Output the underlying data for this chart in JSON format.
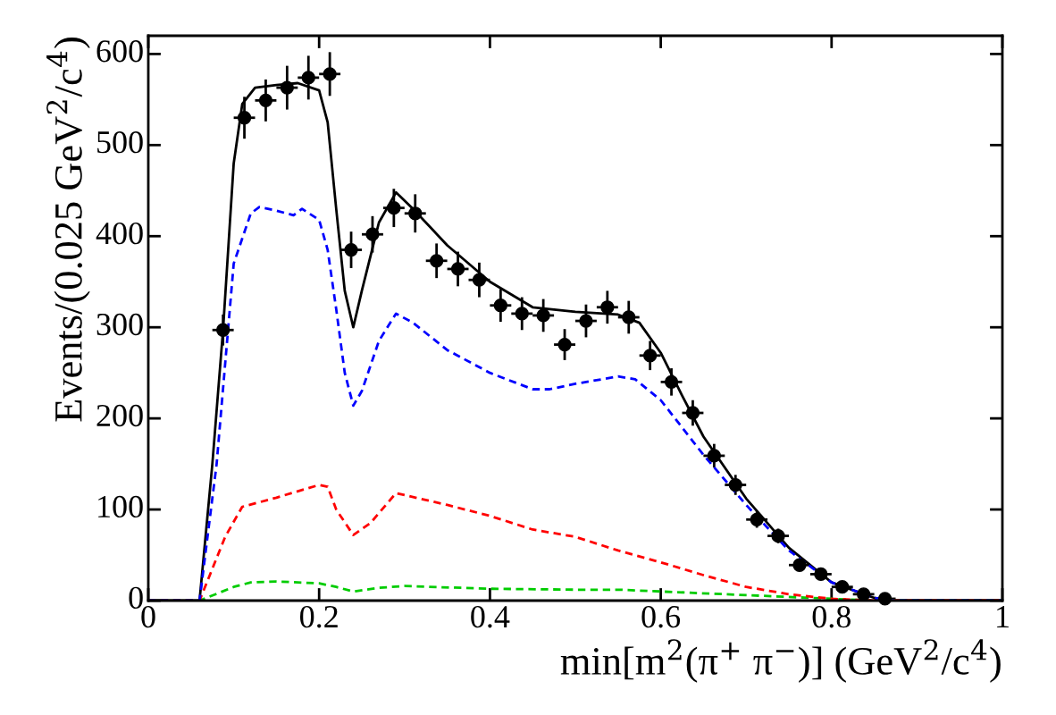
{
  "chart_data": {
    "type": "scatter",
    "xlabel": "min[m$^{2}$(π$^{+}$ π$^{−}$)] (GeV$^{2}$/c$^{4}$)",
    "ylabel": "Events/(0.025 GeV$^{2}$/c$^{4}$)",
    "xlim": [
      0,
      1
    ],
    "ylim": [
      0,
      620
    ],
    "xticks": [
      0,
      0.2,
      0.4,
      0.6,
      0.8,
      1
    ],
    "yticks": [
      0,
      100,
      200,
      300,
      400,
      500,
      600
    ],
    "grid": false,
    "legend": false,
    "series": [
      {
        "type": "line",
        "color": "#00cc00",
        "line_style": "dashed",
        "x": [
          0,
          0.06,
          0.1,
          0.12,
          0.15,
          0.2,
          0.22,
          0.24,
          0.27,
          0.3,
          0.4,
          0.5,
          0.55,
          0.6,
          0.7,
          0.8,
          0.85,
          1.0
        ],
        "values": [
          0,
          0,
          15,
          20,
          21,
          19,
          15,
          10,
          14,
          16,
          13,
          12,
          12,
          10,
          6,
          2,
          0,
          0
        ]
      },
      {
        "type": "line",
        "color": "#ff0000",
        "line_style": "dashed",
        "x": [
          0,
          0.06,
          0.09,
          0.11,
          0.15,
          0.2,
          0.21,
          0.22,
          0.24,
          0.26,
          0.29,
          0.35,
          0.4,
          0.45,
          0.5,
          0.55,
          0.6,
          0.65,
          0.7,
          0.75,
          0.8,
          0.85,
          1.0
        ],
        "values": [
          0,
          0,
          70,
          103,
          113,
          127,
          125,
          100,
          72,
          85,
          118,
          105,
          93,
          78,
          70,
          55,
          42,
          28,
          15,
          7,
          2,
          0,
          0
        ]
      },
      {
        "type": "line",
        "color": "#0000ff",
        "line_style": "dashed",
        "x": [
          0,
          0.06,
          0.08,
          0.1,
          0.12,
          0.13,
          0.15,
          0.17,
          0.18,
          0.2,
          0.21,
          0.22,
          0.23,
          0.24,
          0.25,
          0.27,
          0.29,
          0.31,
          0.35,
          0.4,
          0.45,
          0.47,
          0.5,
          0.55,
          0.57,
          0.6,
          0.65,
          0.7,
          0.75,
          0.8,
          0.85,
          0.87,
          1.0
        ],
        "values": [
          0,
          0,
          150,
          370,
          425,
          432,
          428,
          423,
          430,
          418,
          385,
          320,
          250,
          214,
          230,
          285,
          315,
          305,
          275,
          250,
          232,
          232,
          238,
          246,
          243,
          220,
          160,
          105,
          55,
          20,
          3,
          0,
          0
        ]
      },
      {
        "type": "line",
        "color": "#000000",
        "line_style": "solid",
        "x": [
          0,
          0.06,
          0.075,
          0.0875,
          0.1,
          0.11,
          0.125,
          0.15,
          0.175,
          0.2,
          0.21,
          0.22,
          0.23,
          0.24,
          0.25,
          0.27,
          0.29,
          0.31,
          0.35,
          0.4,
          0.45,
          0.5,
          0.55,
          0.575,
          0.6,
          0.625,
          0.65,
          0.7,
          0.75,
          0.8,
          0.85,
          0.87,
          1.0
        ],
        "values": [
          0,
          0,
          150,
          297,
          480,
          545,
          563,
          566,
          568,
          560,
          525,
          430,
          340,
          300,
          340,
          415,
          448,
          430,
          390,
          350,
          322,
          317,
          314,
          305,
          272,
          225,
          180,
          112,
          58,
          20,
          3,
          0,
          0
        ]
      },
      {
        "color": "#000000",
        "marker": "circle",
        "x": [
          0.0875,
          0.1125,
          0.1375,
          0.1625,
          0.1875,
          0.2125,
          0.2375,
          0.2625,
          0.2875,
          0.3125,
          0.3375,
          0.3625,
          0.3875,
          0.4125,
          0.4375,
          0.4625,
          0.4875,
          0.5125,
          0.5375,
          0.5625,
          0.5875,
          0.6125,
          0.6375,
          0.6625,
          0.6875,
          0.7125,
          0.7375,
          0.7625,
          0.7875,
          0.8125,
          0.8375,
          0.8625
        ],
        "values": [
          297,
          530,
          549,
          563,
          574,
          578,
          385,
          402,
          431,
          425,
          373,
          364,
          352,
          324,
          315,
          313,
          281,
          307,
          322,
          311,
          269,
          240,
          206,
          159,
          127,
          89,
          71,
          39,
          29,
          15,
          7,
          2
        ],
        "errors": [
          17,
          23,
          23,
          24,
          24,
          24,
          20,
          20,
          21,
          21,
          19,
          19,
          19,
          18,
          18,
          18,
          17,
          18,
          18,
          18,
          16,
          15,
          14,
          13,
          11,
          9,
          8,
          6,
          5,
          4,
          3,
          1
        ],
        "xerrors": [
          0.0125,
          0.0125,
          0.0125,
          0.0125,
          0.0125,
          0.0125,
          0.0125,
          0.0125,
          0.0125,
          0.0125,
          0.0125,
          0.0125,
          0.0125,
          0.0125,
          0.0125,
          0.0125,
          0.0125,
          0.0125,
          0.0125,
          0.0125,
          0.0125,
          0.0125,
          0.0125,
          0.0125,
          0.0125,
          0.0125,
          0.0125,
          0.0125,
          0.0125,
          0.0125,
          0.0125,
          0.0125
        ]
      }
    ]
  }
}
